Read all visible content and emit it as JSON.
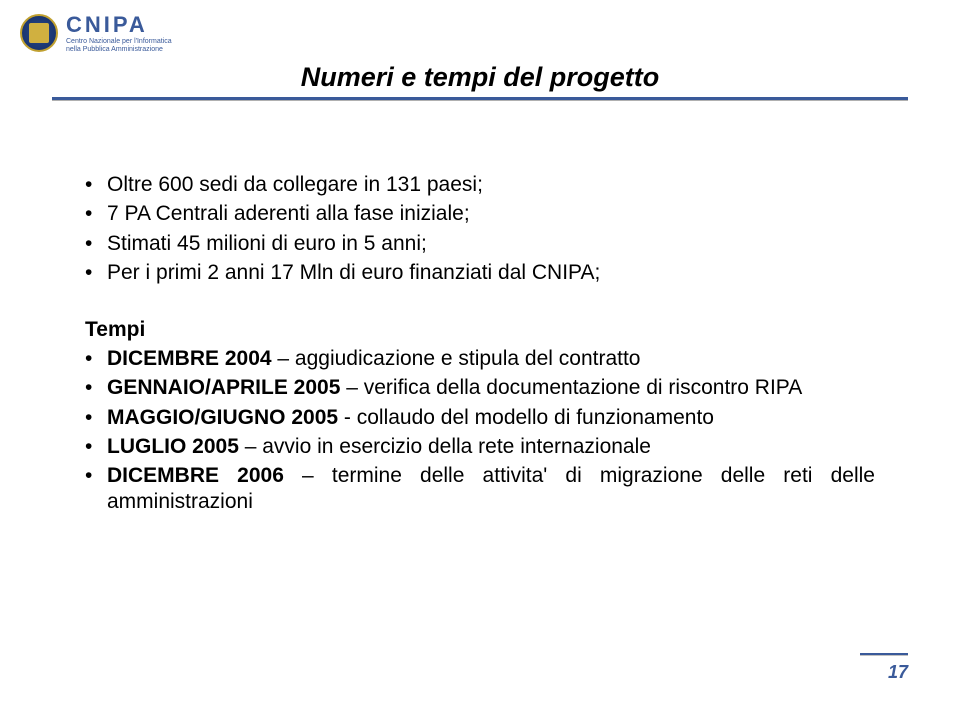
{
  "logo": {
    "title": "CNIPA",
    "subtitle_line1": "Centro Nazionale per l'Informatica",
    "subtitle_line2": "nella Pubblica Amministrazione"
  },
  "slide_title": "Numeri e tempi del progetto",
  "bullets_top": [
    "Oltre 600 sedi da collegare in 131 paesi;",
    "7 PA Centrali aderenti alla fase iniziale;",
    "Stimati 45 milioni di euro in 5 anni;",
    "Per i primi 2 anni 17 Mln di euro finanziati dal CNIPA;"
  ],
  "tempi_heading": "Tempi",
  "tempi_items": [
    {
      "bold": "DICEMBRE 2004",
      "rest": " – aggiudicazione e stipula del contratto"
    },
    {
      "bold": "GENNAIO/APRILE 2005",
      "rest": " – verifica della documentazione di riscontro RIPA"
    },
    {
      "bold": "MAGGIO/GIUGNO 2005",
      "rest": " - collaudo del modello di funzionamento"
    },
    {
      "bold": "LUGLIO 2005",
      "rest": " – avvio in esercizio della rete internazionale"
    },
    {
      "bold": "DICEMBRE 2006",
      "rest": " – termine delle attivita' di migrazione delle reti delle amministrazioni"
    }
  ],
  "page_number": "17",
  "colors": {
    "accent": "#3a5a9a",
    "text": "#000000",
    "background": "#ffffff"
  }
}
